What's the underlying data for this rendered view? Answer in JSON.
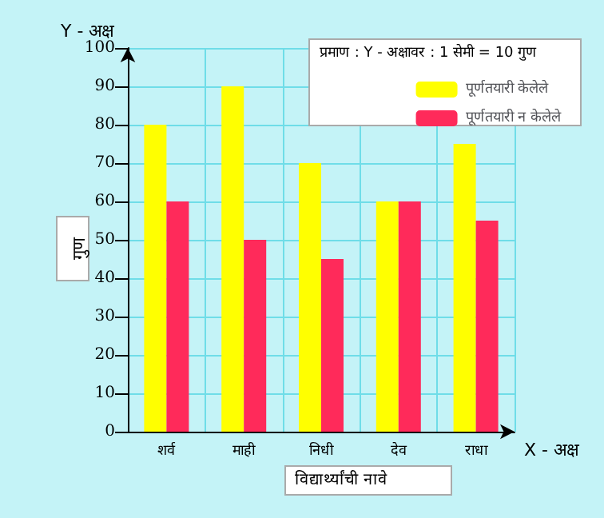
{
  "chart_data": {
    "type": "bar",
    "xlabel": "विद्यार्थ्यांची नावे",
    "ylabel": "गुण",
    "categories": [
      "शर्व",
      "माही",
      "निधी",
      "देव",
      "राधा"
    ],
    "series": [
      {
        "name": "पूर्णतयारी केलेले",
        "color": "#ffff00",
        "values": [
          80,
          90,
          70,
          60,
          75
        ]
      },
      {
        "name": "पूर्णतयारी न केलेले",
        "color": "#ff2a5a",
        "values": [
          60,
          50,
          45,
          60,
          55
        ]
      }
    ],
    "ylim": [
      0,
      100
    ],
    "yticks": [
      0,
      10,
      20,
      30,
      40,
      50,
      60,
      70,
      80,
      90,
      100
    ],
    "grid": true,
    "legend": "top right",
    "annotations": [
      "प्रमाण : Y - अक्षावर : 1 सेमी = 10 गुण",
      "Y - अक्ष",
      "X - अक्ष"
    ]
  }
}
